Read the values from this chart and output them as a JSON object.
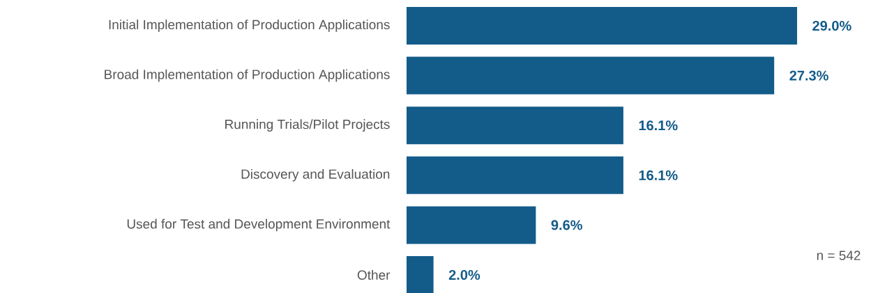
{
  "chart_data": {
    "type": "bar",
    "orientation": "horizontal",
    "categories": [
      "Initial Implementation of Production Applications",
      "Broad Implementation of Production Applications",
      "Running Trials/Pilot Projects",
      "Discovery and Evaluation",
      "Used for Test and Development Environment",
      "Other"
    ],
    "values": [
      29.0,
      27.3,
      16.1,
      16.1,
      9.6,
      2.0
    ],
    "value_labels": [
      "29.0%",
      "27.3%",
      "16.1%",
      "16.1%",
      "9.6%",
      "2.0%"
    ],
    "color": "#135b89",
    "annotations": [
      "n = 542"
    ]
  }
}
